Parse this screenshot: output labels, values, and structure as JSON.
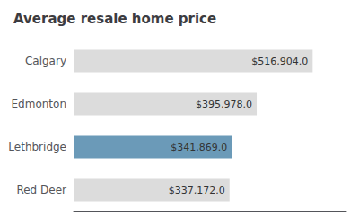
{
  "chart_data": {
    "type": "bar",
    "title": "Average resale home price",
    "orientation": "horizontal",
    "categories": [
      "Calgary",
      "Edmonton",
      "Lethbridge",
      "Red Deer"
    ],
    "values": [
      516904.0,
      395978.0,
      341869.0,
      337172.0
    ],
    "value_labels": [
      "$516,904.0",
      "$395,978.0",
      "$341,869.0",
      "$337,172.0"
    ],
    "data_labels": true,
    "colors": [
      "#dcdcdc",
      "#dcdcdc",
      "#6b9ab8",
      "#dcdcdc"
    ],
    "xlim": [
      0,
      590000
    ],
    "grid": false,
    "tick_labels": "y"
  }
}
